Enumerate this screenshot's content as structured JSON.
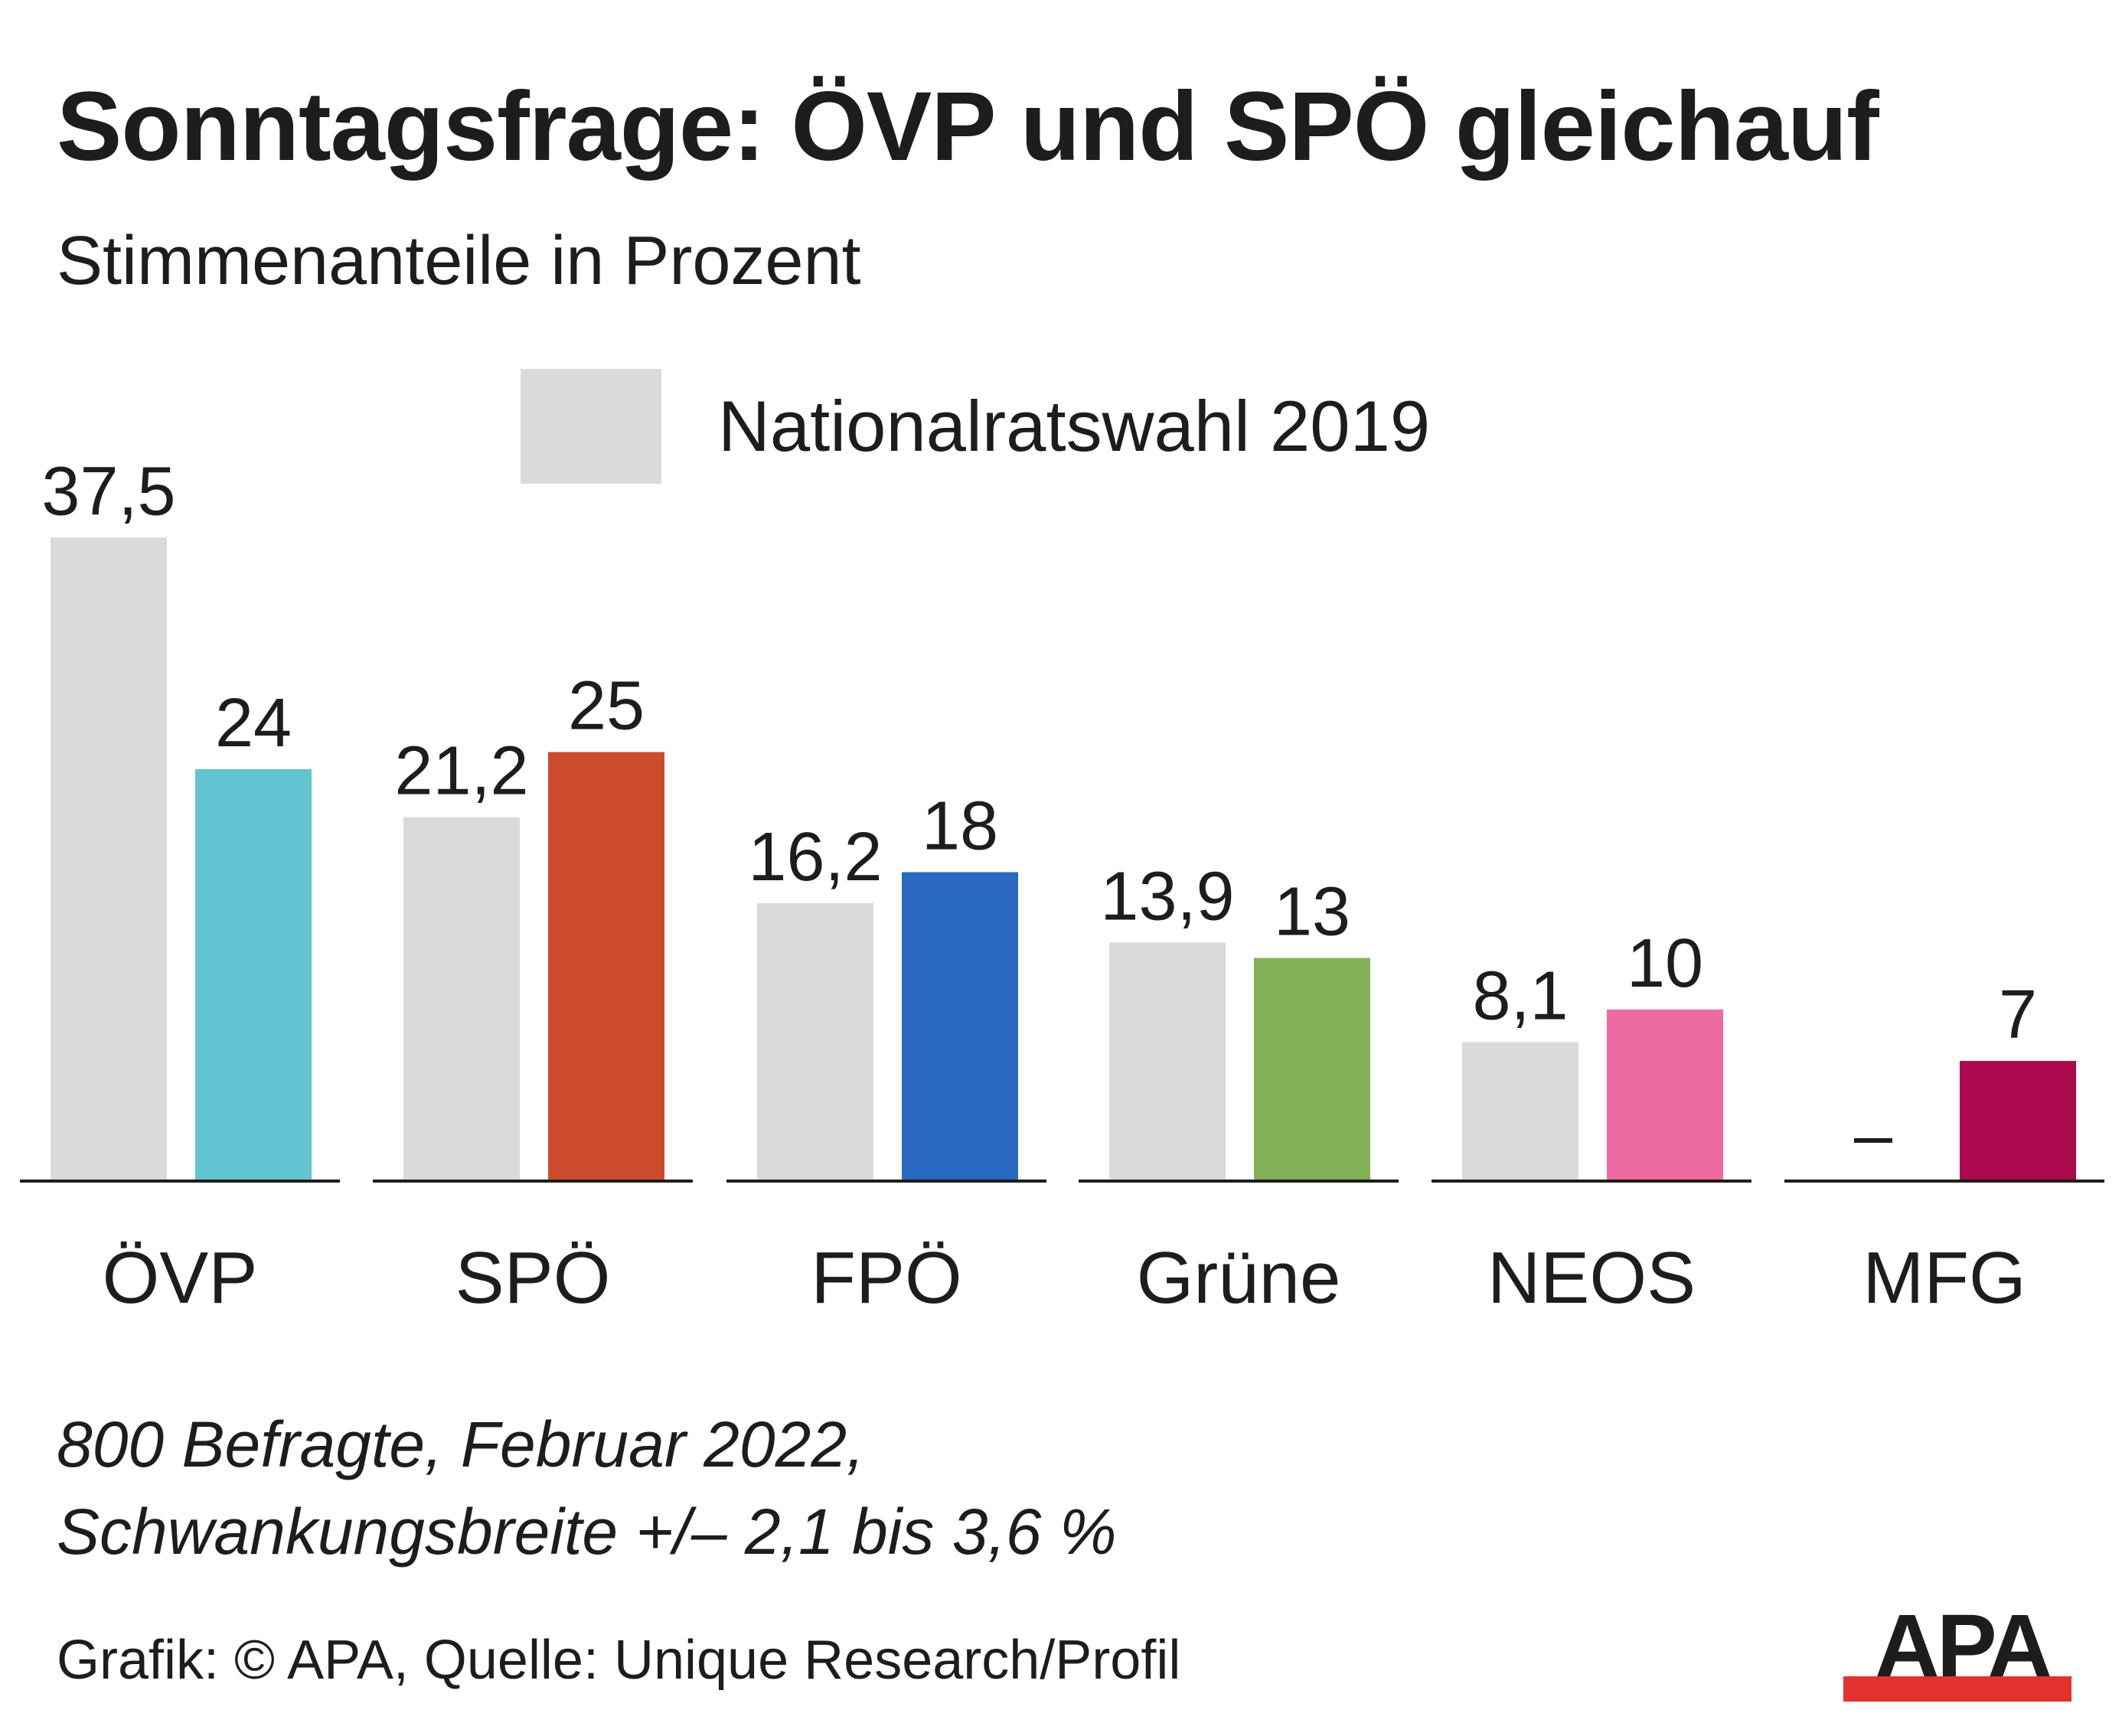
{
  "header": {
    "title": "Sonntagsfrage: ÖVP und SPÖ gleichauf",
    "subtitle": "Stimmenanteile in Prozent"
  },
  "legend": {
    "label": "Nationalratswahl 2019"
  },
  "footer": {
    "note_line1": "800 Befragte, Februar 2022,",
    "note_line2": "Schwankungsbreite +/– 2,1 bis 3,6 %",
    "source": "Grafik: © APA, Quelle: Unique Research/Profil"
  },
  "logo": {
    "text": "APA"
  },
  "colors": {
    "baseline_2019": "#dadada",
    "text": "#1d1d1b",
    "axis": "#1d1d1b",
    "logo_text": "#1d1d1b",
    "logo_bar": "#e3312d"
  },
  "chart_data": {
    "type": "bar",
    "title": "Sonntagsfrage: ÖVP und SPÖ gleichauf",
    "subtitle": "Stimmenanteile in Prozent",
    "categories": [
      "ÖVP",
      "SPÖ",
      "FPÖ",
      "Grüne",
      "NEOS",
      "MFG"
    ],
    "series": [
      {
        "name": "Nationalratswahl 2019",
        "values": [
          37.5,
          21.2,
          16.2,
          13.9,
          8.1,
          null
        ],
        "labels": [
          "37,5",
          "21,2",
          "16,2",
          "13,9",
          "8,1",
          "–"
        ],
        "color": "#dadada"
      },
      {
        "values": [
          24,
          25,
          18,
          13,
          10,
          7
        ],
        "labels": [
          "24",
          "25",
          "18",
          "13",
          "10",
          "7"
        ],
        "colors": [
          "#62c4d0",
          "#cd4b2d",
          "#2868be",
          "#84b057",
          "#ec6aa0",
          "#ac0a4f"
        ]
      }
    ],
    "ylim": [
      0,
      37.5
    ],
    "grid": false,
    "legend": "top-center"
  }
}
